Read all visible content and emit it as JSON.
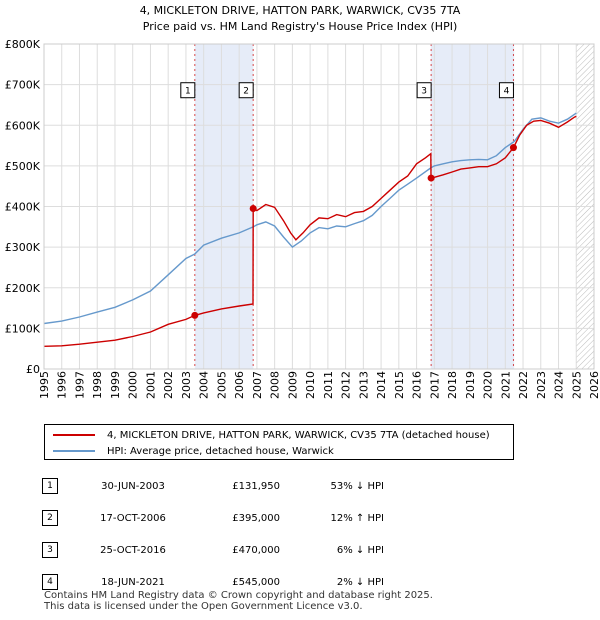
{
  "chart_data": {
    "type": "line",
    "title": "4, MICKLETON DRIVE, HATTON PARK, WARWICK, CV35 7TA",
    "subtitle": "Price paid vs. HM Land Registry's House Price Index (HPI)",
    "xlim": [
      1995,
      2026
    ],
    "ylim": [
      0,
      800000
    ],
    "x_ticks": [
      "1995",
      "1996",
      "1997",
      "1998",
      "1999",
      "2000",
      "2001",
      "2002",
      "2003",
      "2004",
      "2005",
      "2006",
      "2007",
      "2008",
      "2009",
      "2010",
      "2011",
      "2012",
      "2013",
      "2014",
      "2015",
      "2016",
      "2017",
      "2018",
      "2019",
      "2020",
      "2021",
      "2022",
      "2023",
      "2024",
      "2025",
      "2026"
    ],
    "y_ticks": [
      {
        "value": 0,
        "label": "£0"
      },
      {
        "value": 100000,
        "label": "£100K"
      },
      {
        "value": 200000,
        "label": "£200K"
      },
      {
        "value": 300000,
        "label": "£300K"
      },
      {
        "value": 400000,
        "label": "£400K"
      },
      {
        "value": 500000,
        "label": "£500K"
      },
      {
        "value": 600000,
        "label": "£600K"
      },
      {
        "value": 700000,
        "label": "£700K"
      },
      {
        "value": 800000,
        "label": "£800K"
      }
    ],
    "shaded_periods": [
      [
        2003.5,
        2006.8
      ],
      [
        2016.8,
        2021.5
      ]
    ],
    "hatched_from": 2025.0,
    "series": [
      {
        "name": "4, MICKLETON DRIVE, HATTON PARK, WARWICK, CV35 7TA (detached house)",
        "color": "#cc0000",
        "points": [
          [
            1995.0,
            56000
          ],
          [
            1996.0,
            57000
          ],
          [
            1997.0,
            61000
          ],
          [
            1998.0,
            66000
          ],
          [
            1999.0,
            71000
          ],
          [
            2000.0,
            80000
          ],
          [
            2001.0,
            91000
          ],
          [
            2002.0,
            110000
          ],
          [
            2003.0,
            122000
          ],
          [
            2003.5,
            131950
          ],
          [
            2004.0,
            138000
          ],
          [
            2005.0,
            148000
          ],
          [
            2006.0,
            155000
          ],
          [
            2006.78,
            160000
          ],
          [
            2006.79,
            395000
          ],
          [
            2007.0,
            390000
          ],
          [
            2007.5,
            405000
          ],
          [
            2008.0,
            398000
          ],
          [
            2008.5,
            365000
          ],
          [
            2008.9,
            335000
          ],
          [
            2009.2,
            318000
          ],
          [
            2009.6,
            335000
          ],
          [
            2010.0,
            355000
          ],
          [
            2010.5,
            372000
          ],
          [
            2011.0,
            370000
          ],
          [
            2011.5,
            380000
          ],
          [
            2012.0,
            375000
          ],
          [
            2012.5,
            385000
          ],
          [
            2013.0,
            388000
          ],
          [
            2013.5,
            400000
          ],
          [
            2014.0,
            420000
          ],
          [
            2014.5,
            440000
          ],
          [
            2015.0,
            460000
          ],
          [
            2015.5,
            475000
          ],
          [
            2016.0,
            505000
          ],
          [
            2016.5,
            520000
          ],
          [
            2016.8,
            530000
          ],
          [
            2016.81,
            470000
          ],
          [
            2017.0,
            472000
          ],
          [
            2017.5,
            478000
          ],
          [
            2018.0,
            485000
          ],
          [
            2018.5,
            492000
          ],
          [
            2019.0,
            495000
          ],
          [
            2019.5,
            498000
          ],
          [
            2020.0,
            498000
          ],
          [
            2020.5,
            505000
          ],
          [
            2021.0,
            520000
          ],
          [
            2021.46,
            545000
          ],
          [
            2021.8,
            575000
          ],
          [
            2022.2,
            600000
          ],
          [
            2022.6,
            610000
          ],
          [
            2023.0,
            612000
          ],
          [
            2023.5,
            605000
          ],
          [
            2024.0,
            595000
          ],
          [
            2024.5,
            608000
          ],
          [
            2024.9,
            620000
          ],
          [
            2025.0,
            622000
          ]
        ]
      },
      {
        "name": "HPI: Average price, detached house, Warwick",
        "color": "#6699cc",
        "points": [
          [
            1995.0,
            112000
          ],
          [
            1996.0,
            118000
          ],
          [
            1997.0,
            128000
          ],
          [
            1998.0,
            140000
          ],
          [
            1999.0,
            152000
          ],
          [
            2000.0,
            170000
          ],
          [
            2001.0,
            192000
          ],
          [
            2002.0,
            232000
          ],
          [
            2003.0,
            272000
          ],
          [
            2003.5,
            283000
          ],
          [
            2004.0,
            305000
          ],
          [
            2005.0,
            322000
          ],
          [
            2006.0,
            335000
          ],
          [
            2006.8,
            350000
          ],
          [
            2007.0,
            355000
          ],
          [
            2007.5,
            362000
          ],
          [
            2008.0,
            352000
          ],
          [
            2008.5,
            325000
          ],
          [
            2009.0,
            300000
          ],
          [
            2009.5,
            315000
          ],
          [
            2010.0,
            335000
          ],
          [
            2010.5,
            348000
          ],
          [
            2011.0,
            345000
          ],
          [
            2011.5,
            352000
          ],
          [
            2012.0,
            350000
          ],
          [
            2012.5,
            358000
          ],
          [
            2013.0,
            365000
          ],
          [
            2013.5,
            378000
          ],
          [
            2014.0,
            400000
          ],
          [
            2014.5,
            420000
          ],
          [
            2015.0,
            440000
          ],
          [
            2015.5,
            455000
          ],
          [
            2016.0,
            470000
          ],
          [
            2016.8,
            495000
          ],
          [
            2017.0,
            500000
          ],
          [
            2017.5,
            505000
          ],
          [
            2018.0,
            510000
          ],
          [
            2018.5,
            513000
          ],
          [
            2019.0,
            515000
          ],
          [
            2019.5,
            516000
          ],
          [
            2020.0,
            515000
          ],
          [
            2020.5,
            525000
          ],
          [
            2021.0,
            545000
          ],
          [
            2021.5,
            560000
          ],
          [
            2022.0,
            590000
          ],
          [
            2022.5,
            615000
          ],
          [
            2023.0,
            618000
          ],
          [
            2023.5,
            610000
          ],
          [
            2024.0,
            605000
          ],
          [
            2024.5,
            615000
          ],
          [
            2025.0,
            630000
          ]
        ]
      }
    ],
    "sales": [
      {
        "label": "1",
        "x": 2003.5,
        "y": 131950
      },
      {
        "label": "2",
        "x": 2006.79,
        "y": 395000
      },
      {
        "label": "3",
        "x": 2016.82,
        "y": 470000
      },
      {
        "label": "4",
        "x": 2021.46,
        "y": 545000
      }
    ],
    "marker_box_value": 685000
  },
  "legend": {
    "property": "4, MICKLETON DRIVE, HATTON PARK, WARWICK, CV35 7TA (detached house)",
    "hpi": "HPI: Average price, detached house, Warwick",
    "property_color": "#cc0000",
    "hpi_color": "#6699cc"
  },
  "transactions": [
    {
      "num": "1",
      "date": "30-JUN-2003",
      "price": "£131,950",
      "hpi": "53% ↓ HPI"
    },
    {
      "num": "2",
      "date": "17-OCT-2006",
      "price": "£395,000",
      "hpi": "12% ↑ HPI"
    },
    {
      "num": "3",
      "date": "25-OCT-2016",
      "price": "£470,000",
      "hpi": "6% ↓ HPI"
    },
    {
      "num": "4",
      "date": "18-JUN-2021",
      "price": "£545,000",
      "hpi": "2% ↓ HPI"
    }
  ],
  "footer": {
    "line1": "Contains HM Land Registry data © Crown copyright and database right 2025.",
    "line2": "This data is licensed under the Open Government Licence v3.0."
  }
}
